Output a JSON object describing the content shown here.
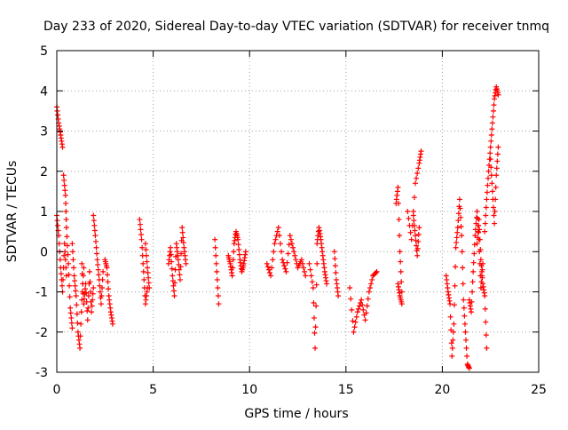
{
  "chart_data": {
    "type": "scatter",
    "title": "Day 233 of 2020, Sidereal Day-to-day VTEC variation (SDTVAR) for receiver tnmq",
    "xlabel": "GPS time / hours",
    "ylabel": "SDTVAR / TECUs",
    "xlim": [
      0,
      25
    ],
    "ylim": [
      -3,
      5
    ],
    "xticks": [
      "0",
      "5",
      "10",
      "15",
      "20",
      "25"
    ],
    "yticks": [
      "-3",
      "-2",
      "-1",
      "0",
      "1",
      "2",
      "3",
      "4",
      "5"
    ],
    "grid": true,
    "marker": "+",
    "color": "#ff0000",
    "series": [
      {
        "name": "SDTVAR",
        "segments": [
          {
            "x": [
              0.0,
              0.1,
              0.2,
              0.3
            ],
            "y": [
              3.6,
              3.2,
              2.9,
              2.6
            ]
          },
          {
            "x": [
              0.0,
              0.1,
              0.2,
              0.3,
              0.4,
              0.5
            ],
            "y": [
              0.9,
              0.4,
              -0.4,
              -1.0,
              0.2,
              -0.6
            ]
          },
          {
            "x": [
              0.35,
              0.45,
              0.5,
              0.6,
              0.7,
              0.8
            ],
            "y": [
              1.9,
              1.4,
              0.6,
              -0.3,
              -1.4,
              -1.9
            ]
          },
          {
            "x": [
              0.8,
              0.9,
              1.0,
              1.1,
              1.2,
              1.3,
              1.4
            ],
            "y": [
              0.2,
              -0.6,
              -1.1,
              -2.0,
              -2.4,
              -1.2,
              -0.4
            ]
          },
          {
            "x": [
              1.3,
              1.4,
              1.5,
              1.6,
              1.7,
              1.8,
              1.9
            ],
            "y": [
              -0.3,
              -1.3,
              -0.8,
              -1.7,
              -0.5,
              -1.5,
              -0.9
            ]
          },
          {
            "x": [
              1.9,
              2.0,
              2.1,
              2.2,
              2.3,
              2.4
            ],
            "y": [
              0.9,
              0.4,
              -0.2,
              -0.7,
              -1.3,
              -0.5
            ]
          },
          {
            "x": [
              2.5,
              2.6,
              2.7,
              2.8,
              2.9
            ],
            "y": [
              -0.2,
              -0.4,
              -1.1,
              -1.5,
              -1.8
            ]
          },
          {
            "x": [
              4.3,
              4.4,
              4.5,
              4.6,
              4.7
            ],
            "y": [
              0.8,
              0.3,
              -0.5,
              -1.3,
              -0.9
            ]
          },
          {
            "x": [
              4.6,
              4.7,
              4.8
            ],
            "y": [
              0.2,
              -0.4,
              -0.9
            ]
          },
          {
            "x": [
              5.8,
              5.9,
              6.0,
              6.1,
              6.2,
              6.3,
              6.4,
              6.5,
              6.6,
              6.7
            ],
            "y": [
              -0.3,
              0.1,
              -0.6,
              -1.1,
              0.2,
              -0.2,
              -0.7,
              0.6,
              0.1,
              -0.3
            ]
          },
          {
            "x": [
              8.2,
              8.3,
              8.4
            ],
            "y": [
              0.3,
              -0.5,
              -1.3
            ]
          },
          {
            "x": [
              8.9,
              9.0,
              9.1,
              9.2,
              9.3,
              9.4,
              9.5,
              9.6,
              9.7,
              9.8
            ],
            "y": [
              -0.1,
              -0.3,
              -0.6,
              0.2,
              0.5,
              0.3,
              -0.2,
              -0.5,
              -0.3,
              0.0
            ]
          },
          {
            "x": [
              10.9,
              11.1,
              11.3,
              11.5,
              11.7,
              11.9,
              12.1,
              12.3,
              12.5,
              12.7,
              12.9
            ],
            "y": [
              -0.3,
              -0.6,
              0.2,
              0.6,
              -0.2,
              -0.5,
              0.4,
              0.0,
              -0.4,
              -0.2,
              -0.6
            ]
          },
          {
            "x": [
              13.1,
              13.3,
              13.4,
              13.5
            ],
            "y": [
              -0.3,
              -0.9,
              -2.4,
              -0.3
            ]
          },
          {
            "x": [
              13.5,
              13.6,
              13.7,
              13.8,
              13.9,
              14.0
            ],
            "y": [
              0.2,
              0.6,
              0.3,
              -0.1,
              -0.5,
              -0.8
            ]
          },
          {
            "x": [
              14.4,
              14.5,
              14.6
            ],
            "y": [
              0.0,
              -0.7,
              -1.1
            ]
          },
          {
            "x": [
              15.2,
              15.4,
              15.6,
              15.8,
              16.0,
              16.2,
              16.4,
              16.6
            ],
            "y": [
              -0.9,
              -2.0,
              -1.5,
              -1.2,
              -1.7,
              -1.0,
              -0.6,
              -0.5
            ]
          },
          {
            "x": [
              17.6,
              17.7,
              17.8,
              17.9
            ],
            "y": [
              1.2,
              1.6,
              0.0,
              -1.0
            ]
          },
          {
            "x": [
              17.7,
              17.8,
              17.9
            ],
            "y": [
              -0.8,
              -1.1,
              -1.3
            ]
          },
          {
            "x": [
              18.2,
              18.4,
              18.6,
              18.8,
              18.9
            ],
            "y": [
              1.0,
              0.3,
              1.7,
              2.2,
              2.5
            ]
          },
          {
            "x": [
              18.5,
              18.6,
              18.7,
              18.8
            ],
            "y": [
              0.9,
              0.4,
              -0.1,
              0.6
            ]
          },
          {
            "x": [
              20.2,
              20.3,
              20.4,
              20.5,
              20.6,
              20.7,
              20.8,
              20.9,
              21.0,
              21.1,
              21.2,
              21.3,
              21.4
            ],
            "y": [
              -0.6,
              -1.0,
              -1.3,
              -2.6,
              -1.8,
              0.1,
              0.6,
              1.3,
              0.4,
              -1.2,
              -2.0,
              -2.8,
              -2.9
            ]
          },
          {
            "x": [
              21.4,
              21.5,
              21.6,
              21.7,
              21.8,
              21.9,
              22.0,
              22.1
            ],
            "y": [
              -1.2,
              -1.5,
              -0.5,
              0.4,
              1.0,
              0.3,
              -0.9,
              -0.3
            ]
          },
          {
            "x": [
              21.8,
              21.9,
              22.0,
              22.1,
              22.2,
              22.3
            ],
            "y": [
              0.2,
              0.8,
              -0.2,
              -0.8,
              -1.1,
              -2.4
            ]
          },
          {
            "x": [
              22.2,
              22.3,
              22.4,
              22.5,
              22.6,
              22.7,
              22.8,
              22.9
            ],
            "y": [
              0.5,
              1.3,
              2.0,
              2.6,
              3.2,
              3.8,
              4.1,
              3.9
            ]
          },
          {
            "x": [
              22.5,
              22.6,
              22.7,
              22.8,
              22.9
            ],
            "y": [
              2.3,
              1.5,
              0.7,
              1.9,
              2.6
            ]
          }
        ]
      }
    ]
  }
}
